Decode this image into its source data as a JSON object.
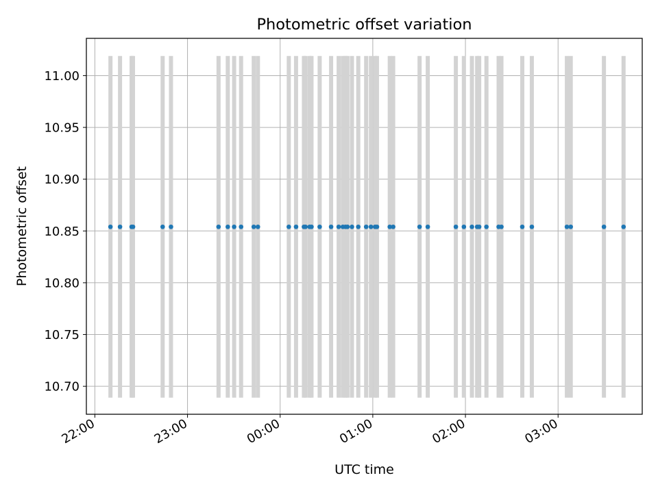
{
  "chart_data": {
    "type": "scatter",
    "title": "Photometric offset variation",
    "xlabel": "UTC time",
    "ylabel": "Photometric offset",
    "x_unit": "minutes after 00:00 UTC (negative = previous day)",
    "xlim": [
      -125.5,
      234.5
    ],
    "ylim": [
      10.673,
      11.036
    ],
    "grid": true,
    "x_ticks": [
      {
        "value": -120,
        "label": "22:00"
      },
      {
        "value": -60,
        "label": "23:00"
      },
      {
        "value": 0,
        "label": "00:00"
      },
      {
        "value": 60,
        "label": "01:00"
      },
      {
        "value": 120,
        "label": "02:00"
      },
      {
        "value": 180,
        "label": "03:00"
      }
    ],
    "y_ticks": [
      {
        "value": 10.7,
        "label": "10.70"
      },
      {
        "value": 10.75,
        "label": "10.75"
      },
      {
        "value": 10.8,
        "label": "10.80"
      },
      {
        "value": 10.85,
        "label": "10.85"
      },
      {
        "value": 10.9,
        "label": "10.90"
      },
      {
        "value": 10.95,
        "label": "10.95"
      },
      {
        "value": 11.0,
        "label": "11.00"
      }
    ],
    "vertical_bands": {
      "ymin": 10.689,
      "ymax": 11.019,
      "color": "#d3d3d3",
      "x": [
        -109.9,
        -103.7,
        -96.2,
        -95.3,
        -76.1,
        -70.7,
        -39.9,
        -33.9,
        -29.8,
        -25.3,
        -17.1,
        -14.4,
        5.6,
        10.3,
        15.4,
        16.4,
        19.1,
        20.3,
        25.6,
        33.0,
        37.9,
        40.6,
        42.3,
        43.6,
        46.5,
        50.6,
        55.7,
        58.8,
        61.5,
        62.7,
        71.0,
        73.2,
        90.3,
        95.6,
        113.8,
        119.0,
        124.2,
        127.6,
        128.9,
        133.6,
        141.5,
        143.3,
        156.8,
        163.0,
        185.7,
        188.2,
        209.7,
        222.4
      ]
    },
    "series": [
      {
        "color": "#1f77b4",
        "points": [
          {
            "x": -109.9,
            "y": 10.854
          },
          {
            "x": -103.7,
            "y": 10.854
          },
          {
            "x": -96.2,
            "y": 10.854
          },
          {
            "x": -95.3,
            "y": 10.854
          },
          {
            "x": -76.1,
            "y": 10.854
          },
          {
            "x": -70.7,
            "y": 10.854
          },
          {
            "x": -39.9,
            "y": 10.854
          },
          {
            "x": -33.9,
            "y": 10.854
          },
          {
            "x": -29.8,
            "y": 10.854
          },
          {
            "x": -25.3,
            "y": 10.854
          },
          {
            "x": -17.1,
            "y": 10.854
          },
          {
            "x": -14.4,
            "y": 10.854
          },
          {
            "x": 5.6,
            "y": 10.854
          },
          {
            "x": 10.3,
            "y": 10.854
          },
          {
            "x": 15.4,
            "y": 10.854
          },
          {
            "x": 16.4,
            "y": 10.854
          },
          {
            "x": 19.1,
            "y": 10.854
          },
          {
            "x": 20.3,
            "y": 10.854
          },
          {
            "x": 25.6,
            "y": 10.854
          },
          {
            "x": 33.0,
            "y": 10.854
          },
          {
            "x": 37.9,
            "y": 10.854
          },
          {
            "x": 40.6,
            "y": 10.854
          },
          {
            "x": 42.3,
            "y": 10.854
          },
          {
            "x": 43.6,
            "y": 10.854
          },
          {
            "x": 46.5,
            "y": 10.854
          },
          {
            "x": 50.6,
            "y": 10.854
          },
          {
            "x": 55.7,
            "y": 10.854
          },
          {
            "x": 58.8,
            "y": 10.854
          },
          {
            "x": 61.5,
            "y": 10.854
          },
          {
            "x": 62.7,
            "y": 10.854
          },
          {
            "x": 71.0,
            "y": 10.854
          },
          {
            "x": 73.2,
            "y": 10.854
          },
          {
            "x": 90.3,
            "y": 10.854
          },
          {
            "x": 95.6,
            "y": 10.854
          },
          {
            "x": 113.8,
            "y": 10.854
          },
          {
            "x": 119.0,
            "y": 10.854
          },
          {
            "x": 124.2,
            "y": 10.854
          },
          {
            "x": 127.6,
            "y": 10.854
          },
          {
            "x": 128.9,
            "y": 10.854
          },
          {
            "x": 133.6,
            "y": 10.854
          },
          {
            "x": 141.5,
            "y": 10.854
          },
          {
            "x": 143.3,
            "y": 10.854
          },
          {
            "x": 156.8,
            "y": 10.854
          },
          {
            "x": 163.0,
            "y": 10.854
          },
          {
            "x": 185.7,
            "y": 10.854
          },
          {
            "x": 188.2,
            "y": 10.854
          },
          {
            "x": 209.7,
            "y": 10.854
          },
          {
            "x": 222.4,
            "y": 10.854
          }
        ]
      }
    ]
  }
}
